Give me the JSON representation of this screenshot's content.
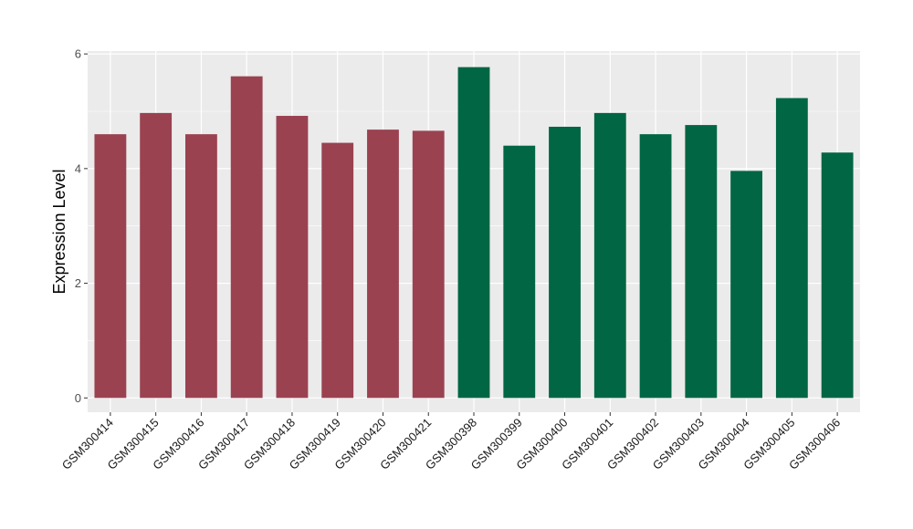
{
  "chart_data": {
    "type": "bar",
    "title": "",
    "xlabel": "",
    "ylabel": "Expression Level",
    "ylim": [
      -0.25,
      6.05
    ],
    "yticks": [
      0,
      2,
      4,
      6
    ],
    "grid": true,
    "background_color": "#ebebeb",
    "grid_color": "#ffffff",
    "categories": [
      "GSM300414",
      "GSM300415",
      "GSM300416",
      "GSM300417",
      "GSM300418",
      "GSM300419",
      "GSM300420",
      "GSM300421",
      "GSM300398",
      "GSM300399",
      "GSM300400",
      "GSM300401",
      "GSM300402",
      "GSM300403",
      "GSM300404",
      "GSM300405",
      "GSM300406"
    ],
    "values": [
      4.6,
      4.97,
      4.6,
      5.61,
      4.92,
      4.45,
      4.68,
      4.66,
      5.77,
      4.4,
      4.73,
      4.97,
      4.6,
      4.76,
      3.96,
      5.23,
      4.28
    ],
    "colors": [
      "#9a4250",
      "#9a4250",
      "#9a4250",
      "#9a4250",
      "#9a4250",
      "#9a4250",
      "#9a4250",
      "#9a4250",
      "#006643",
      "#006643",
      "#006643",
      "#006643",
      "#006643",
      "#006643",
      "#006643",
      "#006643",
      "#006643"
    ]
  }
}
